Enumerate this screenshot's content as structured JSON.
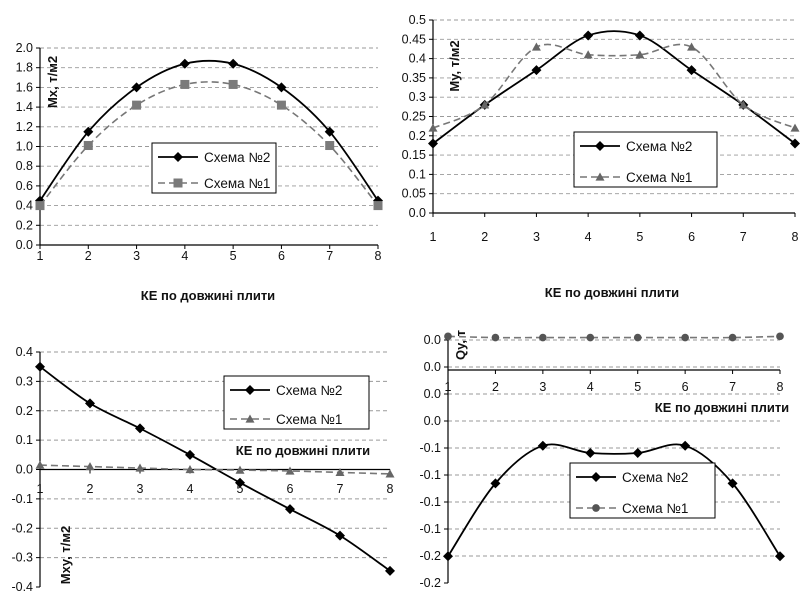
{
  "chart_data": [
    {
      "type": "line",
      "categories": [
        "1",
        "2",
        "3",
        "4",
        "5",
        "6",
        "7",
        "8"
      ],
      "ylabel": "Mx, т/м2",
      "xlabel": "КЕ по довжині плити",
      "ylim": [
        0,
        2.0
      ],
      "yticks": [
        "0.0",
        "0.2",
        "0.4",
        "0.6",
        "0.8",
        "1.0",
        "1.2",
        "1.4",
        "1.6",
        "1.8",
        "2.0"
      ],
      "grid": true,
      "legend": "center-right",
      "series": [
        {
          "name": "Схема №2",
          "marker": "diamond",
          "values": [
            0.45,
            1.15,
            1.6,
            1.84,
            1.84,
            1.6,
            1.15,
            0.45
          ]
        },
        {
          "name": "Схема №1",
          "marker": "square",
          "values": [
            0.4,
            1.01,
            1.42,
            1.63,
            1.63,
            1.42,
            1.01,
            0.4
          ]
        }
      ]
    },
    {
      "type": "line",
      "categories": [
        "1",
        "2",
        "3",
        "4",
        "5",
        "6",
        "7",
        "8"
      ],
      "ylabel": "My, т/м2",
      "xlabel": "КЕ по довжині плити",
      "ylim": [
        0,
        0.5
      ],
      "yticks": [
        "0.0",
        "0.05",
        "0.1",
        "0.15",
        "0.2",
        "0.25",
        "0.3",
        "0.35",
        "0.4",
        "0.45",
        "0.5"
      ],
      "grid": true,
      "legend": "center-right",
      "series": [
        {
          "name": "Схема №2",
          "marker": "diamond",
          "values": [
            0.18,
            0.28,
            0.37,
            0.46,
            0.46,
            0.37,
            0.28,
            0.18
          ]
        },
        {
          "name": "Схема №1",
          "marker": "triangle",
          "values": [
            0.22,
            0.28,
            0.43,
            0.41,
            0.41,
            0.43,
            0.28,
            0.22
          ]
        }
      ]
    },
    {
      "type": "line",
      "categories": [
        "1",
        "2",
        "3",
        "4",
        "5",
        "6",
        "7",
        "8"
      ],
      "ylabel": "Mxy, т/м2",
      "xlabel": "КЕ по довжині плити",
      "ylim": [
        -0.4,
        0.4
      ],
      "yticks": [
        "-0.4",
        "-0.3",
        "-0.2",
        "-0.1",
        "0.0",
        "0.1",
        "0.2",
        "0.3",
        "0.4"
      ],
      "grid": true,
      "legend": "top-right",
      "series": [
        {
          "name": "Схема №2",
          "marker": "diamond",
          "values": [
            0.35,
            0.225,
            0.14,
            0.05,
            -0.045,
            -0.135,
            -0.225,
            -0.345
          ]
        },
        {
          "name": "Схема №1",
          "marker": "triangle",
          "values": [
            0.015,
            0.01,
            0.005,
            0.0,
            -0.002,
            -0.005,
            -0.01,
            -0.015
          ]
        }
      ]
    },
    {
      "type": "line",
      "categories": [
        "1",
        "2",
        "3",
        "4",
        "5",
        "6",
        "7",
        "8"
      ],
      "ylabel": "Qy, т",
      "xlabel": "КЕ по довжині плити",
      "ylim": [
        -0.2,
        0.0
      ],
      "yticks": [
        "-0.2",
        "-0.2",
        "-0.1",
        "-0.1",
        "-0.1",
        "-0.1",
        "0.0",
        "0.0",
        "0.0",
        "0.0"
      ],
      "grid": true,
      "legend": "bottom-right",
      "series": [
        {
          "name": "Схема №2",
          "marker": "diamond",
          "values": [
            -0.178,
            -0.118,
            -0.087,
            -0.093,
            -0.093,
            -0.087,
            -0.118,
            -0.178
          ]
        },
        {
          "name": "Схема №1",
          "marker": "circle",
          "values": [
            0.003,
            0.002,
            0.002,
            0.002,
            0.002,
            0.002,
            0.002,
            0.003
          ]
        }
      ]
    }
  ]
}
